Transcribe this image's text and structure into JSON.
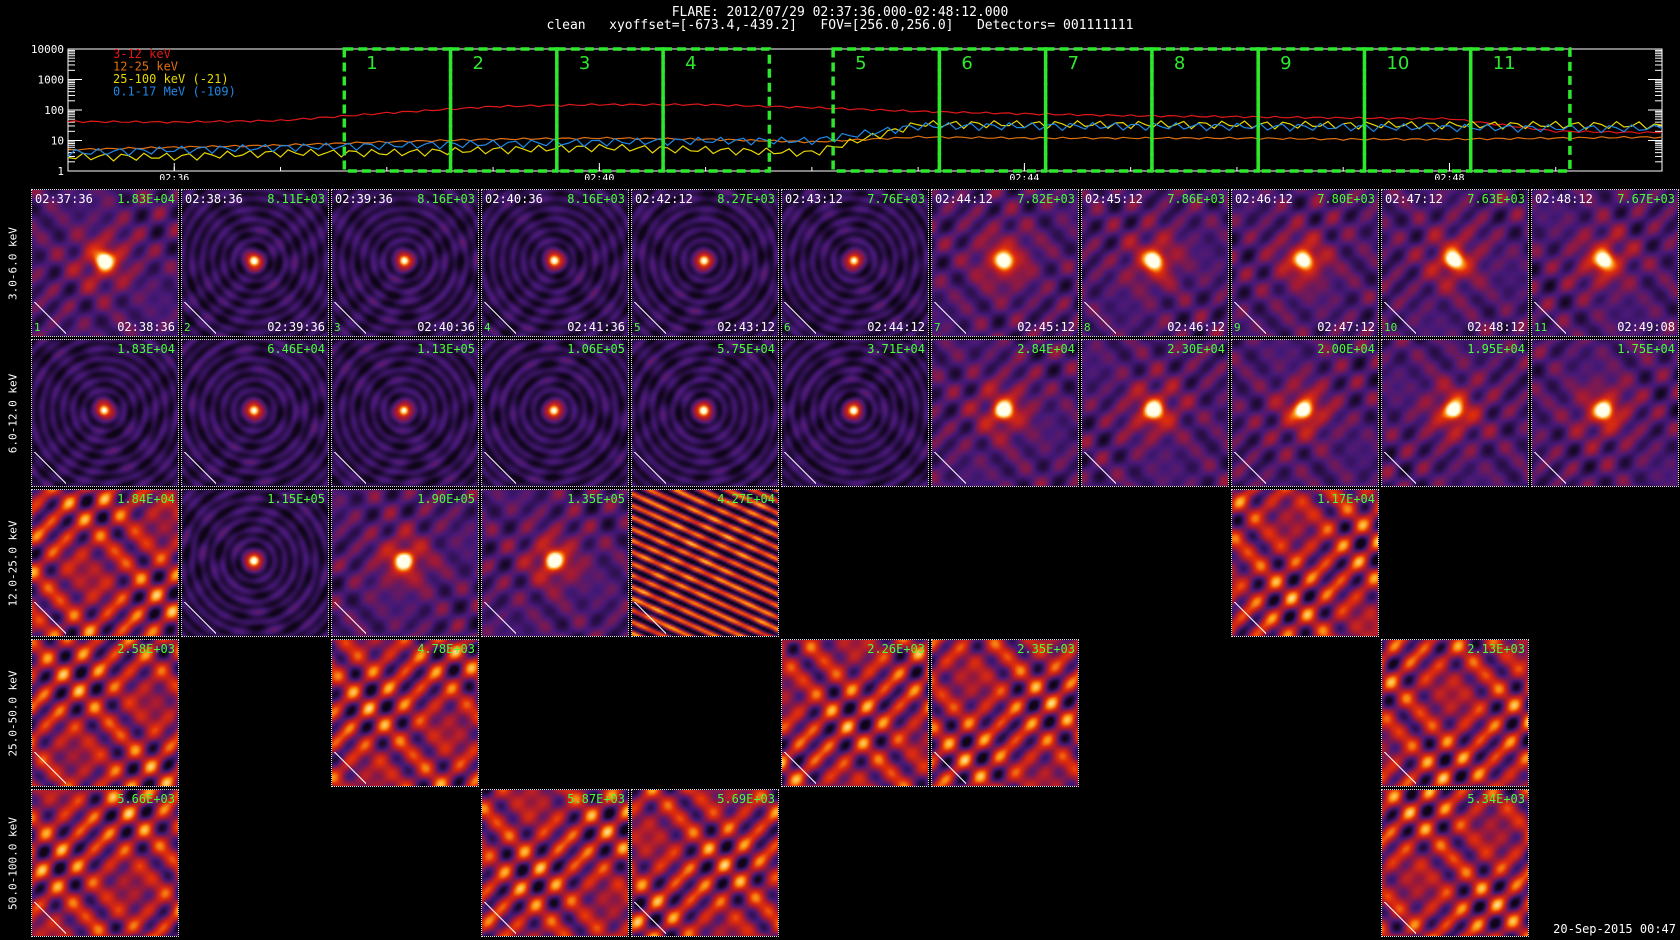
{
  "header": {
    "line1": "FLARE: 2012/07/29 02:37:36.000-02:48:12.000",
    "line2": "clean   xyoffset=[-673.4,-439.2]   FOV=[256.0,256.0]   Detectors= 001111111"
  },
  "lightcurve": {
    "y_ticks": [
      "10000",
      "1000",
      "100",
      "10",
      "1"
    ],
    "x_ticks": [
      "02:36",
      "02:40",
      "02:44",
      "02:48"
    ],
    "legend": [
      {
        "label": "3-12 keV",
        "color": "#e01818"
      },
      {
        "label": "12-25 keV",
        "color": "#e07010"
      },
      {
        "label": "25-100 keV (-21)",
        "color": "#e8d800"
      },
      {
        "label": "0.1-17 MeV (-109)",
        "color": "#1e88e8"
      }
    ],
    "interval_labels": [
      "1",
      "2",
      "3",
      "4",
      "5",
      "6",
      "7",
      "8",
      "9",
      "10",
      "11"
    ],
    "interval_color": "#2ee82e"
  },
  "chart_data": {
    "type": "line",
    "title": "FLARE: 2012/07/29 02:37:36.000-02:48:12.000",
    "xlabel": "",
    "ylabel": "",
    "y_scale": "log",
    "ylim": [
      1,
      10000
    ],
    "xlim": [
      "02:35:00",
      "02:50:00"
    ],
    "x": [
      "02:35:00",
      "02:36:00",
      "02:37:00",
      "02:38:00",
      "02:39:00",
      "02:40:00",
      "02:41:00",
      "02:42:00",
      "02:43:00",
      "02:44:00",
      "02:45:00",
      "02:46:00",
      "02:47:00",
      "02:48:00",
      "02:49:00",
      "02:50:00"
    ],
    "series": [
      {
        "name": "3-12 keV",
        "values": [
          42,
          40,
          45,
          80,
          130,
          150,
          150,
          120,
          90,
          75,
          65,
          60,
          55,
          52,
          20,
          18
        ]
      },
      {
        "name": "12-25 keV",
        "values": [
          5,
          6,
          7,
          9,
          11,
          12,
          11,
          9,
          13,
          12,
          12,
          12,
          11,
          11,
          12,
          13
        ]
      },
      {
        "name": "25-100 keV (-21)",
        "values": [
          3,
          3,
          4,
          4,
          5,
          6,
          5,
          4,
          35,
          35,
          34,
          34,
          33,
          33,
          33,
          32
        ]
      },
      {
        "name": "0.1-17 MeV (-109)",
        "values": [
          4,
          5,
          6,
          7,
          8,
          9,
          10,
          10,
          30,
          30,
          30,
          29,
          28,
          27,
          26,
          25
        ]
      }
    ],
    "intervals": [
      {
        "label": "1",
        "start": "02:37:36",
        "end": "02:38:36"
      },
      {
        "label": "2",
        "start": "02:38:36",
        "end": "02:39:36"
      },
      {
        "label": "3",
        "start": "02:39:36",
        "end": "02:40:36"
      },
      {
        "label": "4",
        "start": "02:40:36",
        "end": "02:41:36"
      },
      {
        "label": "5",
        "start": "02:42:12",
        "end": "02:43:12"
      },
      {
        "label": "6",
        "start": "02:43:12",
        "end": "02:44:12"
      },
      {
        "label": "7",
        "start": "02:44:12",
        "end": "02:45:12"
      },
      {
        "label": "8",
        "start": "02:45:12",
        "end": "02:46:12"
      },
      {
        "label": "9",
        "start": "02:46:12",
        "end": "02:47:12"
      },
      {
        "label": "10",
        "start": "02:47:12",
        "end": "02:48:12"
      },
      {
        "label": "11",
        "start": "02:48:12",
        "end": "02:49:08"
      }
    ]
  },
  "image_grid": {
    "rows": [
      "3.0-6.0 keV",
      "6.0-12.0 keV",
      "12.0-25.0 keV",
      "25.0-50.0 keV",
      "50.0-100.0 keV"
    ],
    "start_times": [
      "02:37:36",
      "02:38:36",
      "02:39:36",
      "02:40:36",
      "02:42:12",
      "02:43:12",
      "02:44:12",
      "02:45:12",
      "02:46:12",
      "02:47:12",
      "02:48:12"
    ],
    "end_times": [
      "02:38:36",
      "02:39:36",
      "02:40:36",
      "02:41:36",
      "02:43:12",
      "02:44:12",
      "02:45:12",
      "02:46:12",
      "02:47:12",
      "02:48:12",
      "02:49:08"
    ],
    "panels": [
      {
        "row": 0,
        "col": 0,
        "peak": "1.83E+04",
        "style": "source-diffuse"
      },
      {
        "row": 0,
        "col": 1,
        "peak": "8.11E+03",
        "style": "source"
      },
      {
        "row": 0,
        "col": 2,
        "peak": "8.16E+03",
        "style": "source"
      },
      {
        "row": 0,
        "col": 3,
        "peak": "8.16E+03",
        "style": "source"
      },
      {
        "row": 0,
        "col": 4,
        "peak": "8.27E+03",
        "style": "source"
      },
      {
        "row": 0,
        "col": 5,
        "peak": "7.76E+03",
        "style": "source"
      },
      {
        "row": 0,
        "col": 6,
        "peak": "7.82E+03",
        "style": "source-diffuse"
      },
      {
        "row": 0,
        "col": 7,
        "peak": "7.86E+03",
        "style": "source-diffuse"
      },
      {
        "row": 0,
        "col": 8,
        "peak": "7.80E+03",
        "style": "source-diffuse"
      },
      {
        "row": 0,
        "col": 9,
        "peak": "7.63E+03",
        "style": "source-diffuse"
      },
      {
        "row": 0,
        "col": 10,
        "peak": "7.67E+03",
        "style": "source-diffuse"
      },
      {
        "row": 1,
        "col": 0,
        "peak": "1.83E+04",
        "style": "source"
      },
      {
        "row": 1,
        "col": 1,
        "peak": "6.46E+04",
        "style": "source"
      },
      {
        "row": 1,
        "col": 2,
        "peak": "1.13E+05",
        "style": "source"
      },
      {
        "row": 1,
        "col": 3,
        "peak": "1.06E+05",
        "style": "source"
      },
      {
        "row": 1,
        "col": 4,
        "peak": "5.75E+04",
        "style": "source"
      },
      {
        "row": 1,
        "col": 5,
        "peak": "3.71E+04",
        "style": "source"
      },
      {
        "row": 1,
        "col": 6,
        "peak": "2.84E+04",
        "style": "source-diffuse"
      },
      {
        "row": 1,
        "col": 7,
        "peak": "2.30E+04",
        "style": "source-diffuse"
      },
      {
        "row": 1,
        "col": 8,
        "peak": "2.00E+04",
        "style": "source-diffuse"
      },
      {
        "row": 1,
        "col": 9,
        "peak": "1.95E+04",
        "style": "source-diffuse"
      },
      {
        "row": 1,
        "col": 10,
        "peak": "1.75E+04",
        "style": "source-diffuse"
      },
      {
        "row": 2,
        "col": 0,
        "peak": "1.84E+04",
        "style": "noise"
      },
      {
        "row": 2,
        "col": 1,
        "peak": "1.15E+05",
        "style": "source"
      },
      {
        "row": 2,
        "col": 2,
        "peak": "1.90E+05",
        "style": "source-diffuse"
      },
      {
        "row": 2,
        "col": 3,
        "peak": "1.35E+05",
        "style": "source-diffuse"
      },
      {
        "row": 2,
        "col": 4,
        "peak": "4.27E+04",
        "style": "stripes"
      },
      {
        "row": 2,
        "col": 8,
        "peak": "1.17E+04",
        "style": "noise"
      },
      {
        "row": 3,
        "col": 0,
        "peak": "2.58E+03",
        "style": "noise"
      },
      {
        "row": 3,
        "col": 2,
        "peak": "4.78E+03",
        "style": "noise"
      },
      {
        "row": 3,
        "col": 5,
        "peak": "2.26E+03",
        "style": "noise"
      },
      {
        "row": 3,
        "col": 6,
        "peak": "2.35E+03",
        "style": "noise"
      },
      {
        "row": 3,
        "col": 9,
        "peak": "2.13E+03",
        "style": "noise"
      },
      {
        "row": 4,
        "col": 0,
        "peak": "5.66E+03",
        "style": "noise"
      },
      {
        "row": 4,
        "col": 3,
        "peak": "5.87E+03",
        "style": "noise"
      },
      {
        "row": 4,
        "col": 4,
        "peak": "5.69E+03",
        "style": "noise"
      },
      {
        "row": 4,
        "col": 9,
        "peak": "5.34E+03",
        "style": "noise"
      }
    ]
  },
  "stamp": "20-Sep-2015 00:47"
}
